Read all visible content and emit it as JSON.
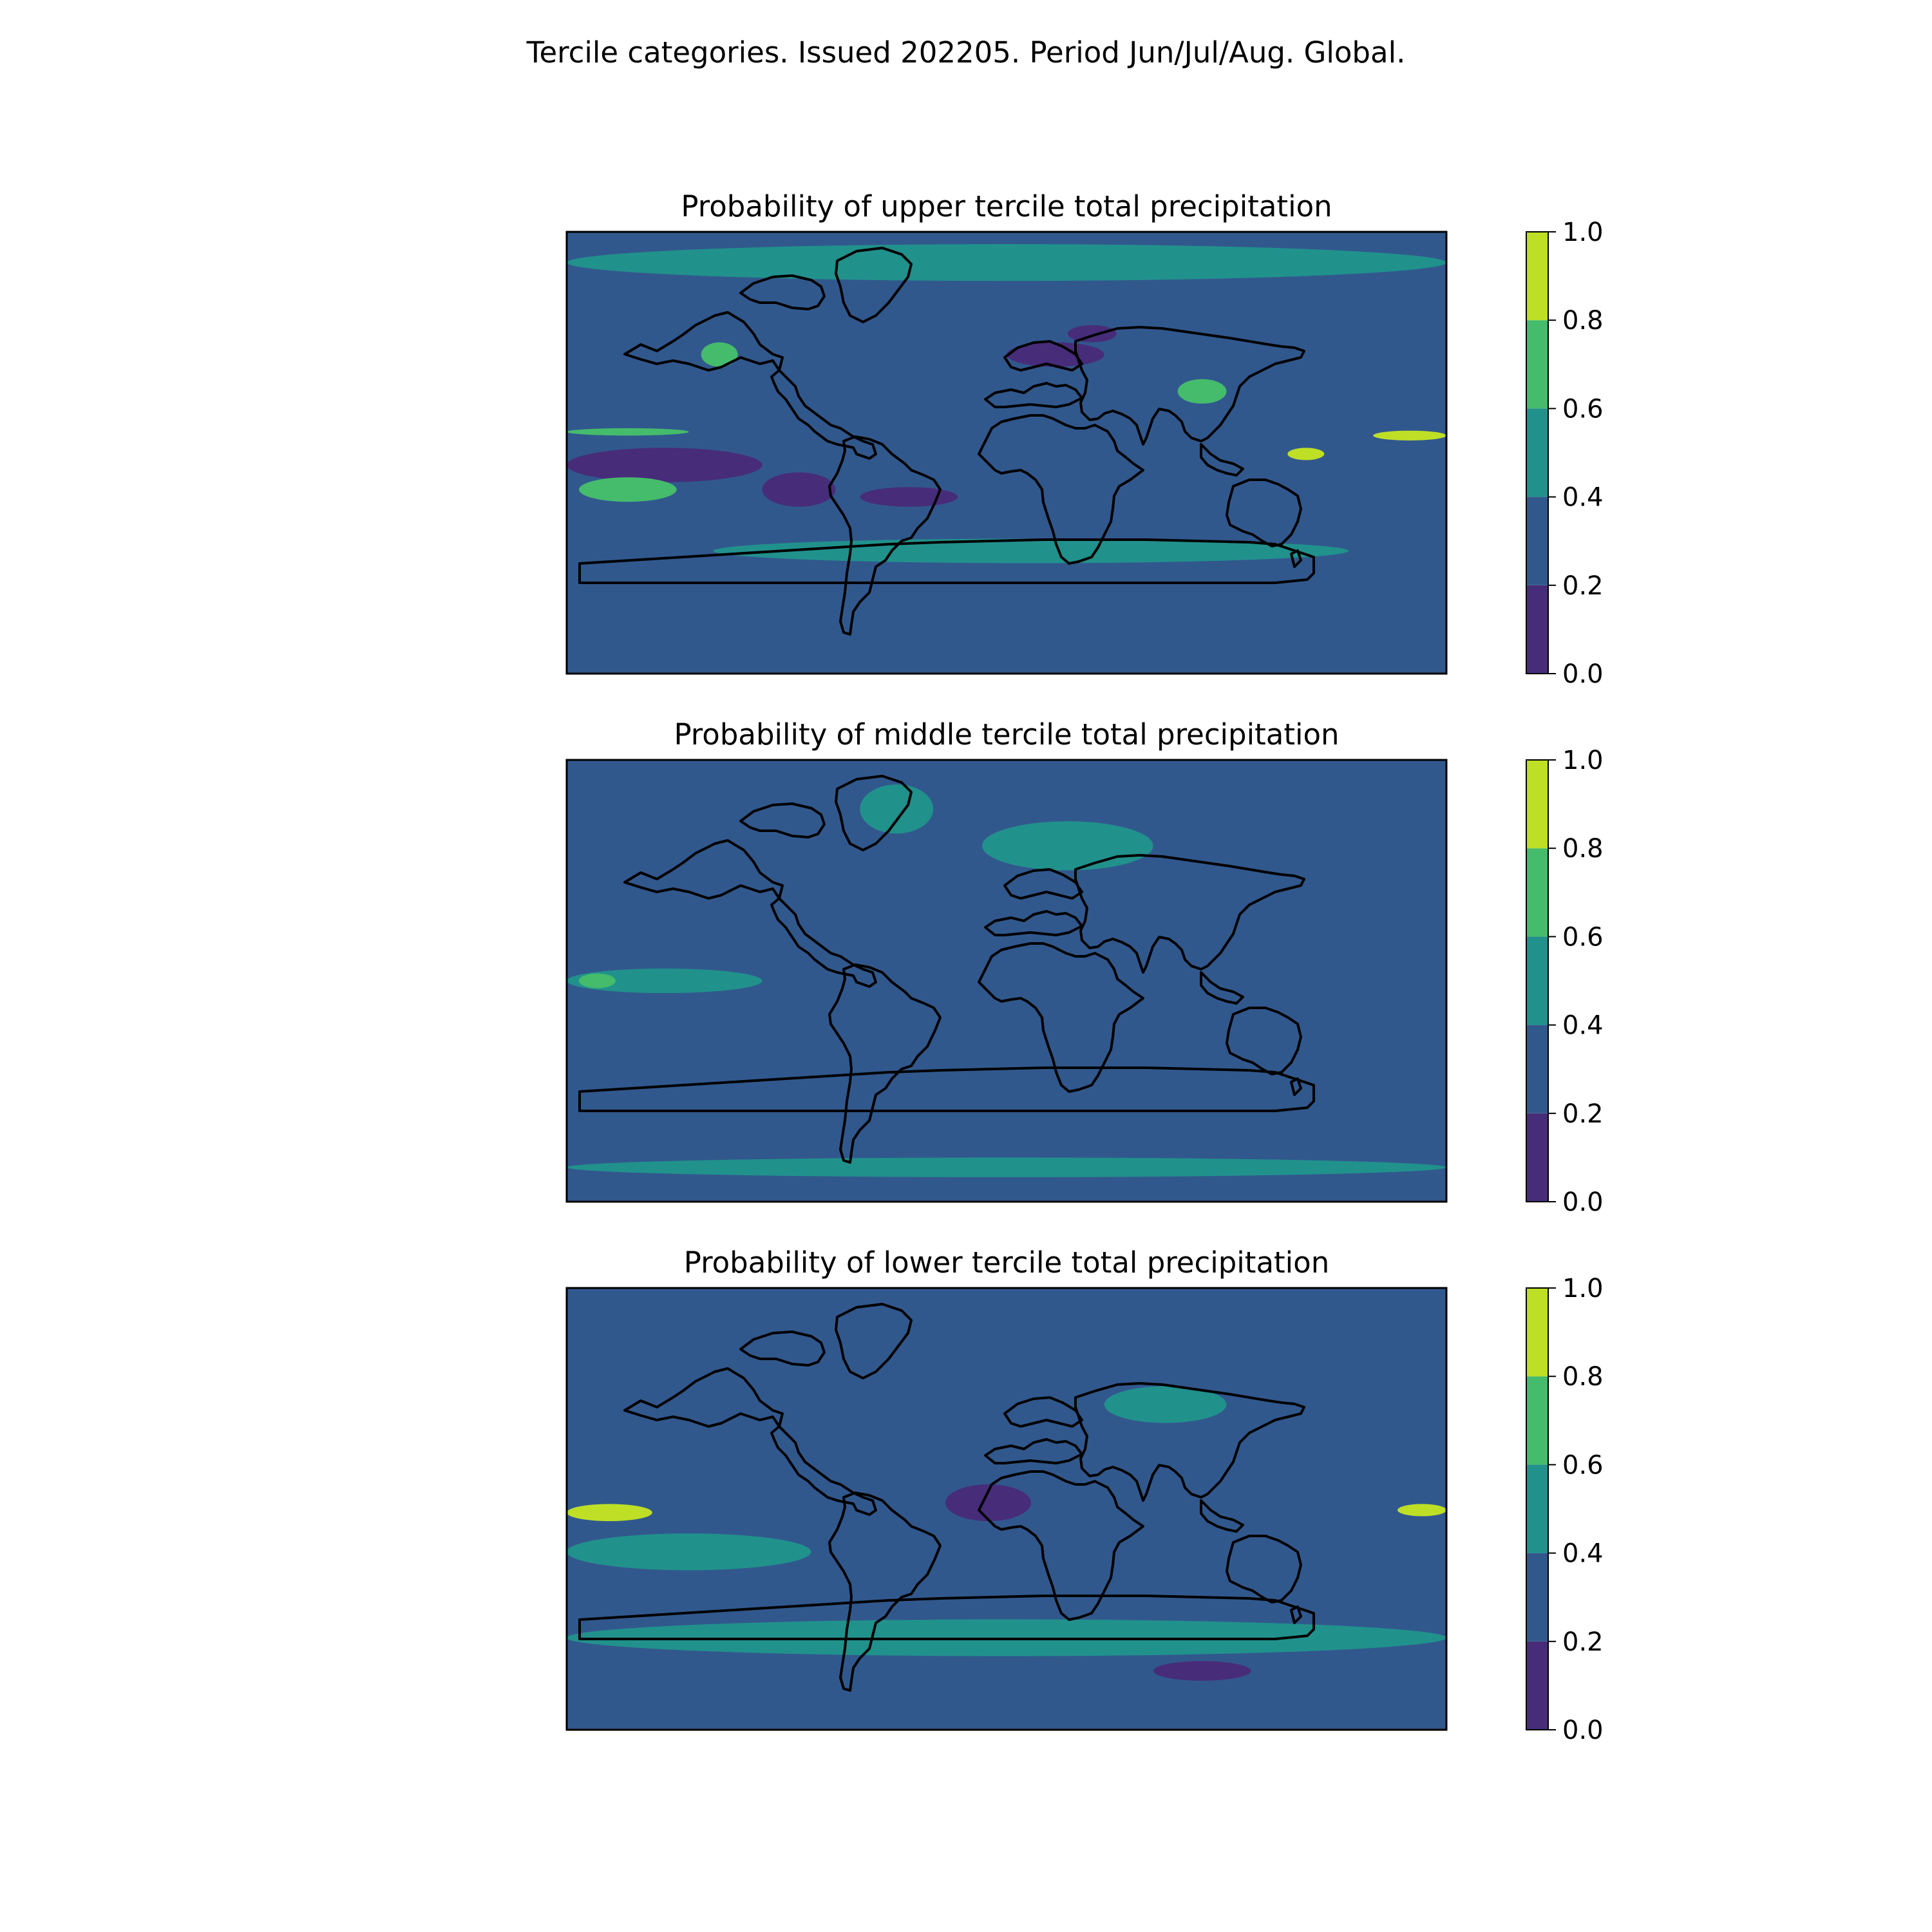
{
  "figure": {
    "suptitle": "Tercile categories. Issued 202205. Period Jun/Jul/Aug. Global."
  },
  "colormap": {
    "name": "viridis",
    "bins": [
      0.0,
      0.2,
      0.4,
      0.6,
      0.8,
      1.0
    ],
    "colors": [
      "#472c7a",
      "#31588d",
      "#21918c",
      "#45bb6c",
      "#bedf26"
    ],
    "tick_labels": [
      "0.0",
      "0.2",
      "0.4",
      "0.6",
      "0.8",
      "1.0"
    ]
  },
  "panels": [
    {
      "id": "upper",
      "title": "Probability of upper tercile total precipitation",
      "background_bin": 1,
      "regions": [
        {
          "desc": "equatorial east Pacific dry band",
          "bin": 0,
          "lon": [
            -180,
            -100
          ],
          "lat": [
            -12,
            2
          ]
        },
        {
          "desc": "Peru / Chile coast dry",
          "bin": 0,
          "lon": [
            -100,
            -70
          ],
          "lat": [
            -22,
            -8
          ]
        },
        {
          "desc": "South Atlantic dry band",
          "bin": 0,
          "lon": [
            -60,
            -20
          ],
          "lat": [
            -22,
            -14
          ]
        },
        {
          "desc": "Mediterranean / Middle East dry",
          "bin": 0,
          "lon": [
            0,
            40
          ],
          "lat": [
            35,
            45
          ]
        },
        {
          "desc": "Black Sea dry",
          "bin": 0,
          "lon": [
            25,
            45
          ],
          "lat": [
            45,
            52
          ]
        },
        {
          "desc": "south Pacific wet band",
          "bin": 3,
          "lon": [
            -175,
            -135
          ],
          "lat": [
            -20,
            -10
          ]
        },
        {
          "desc": "Pacific tongue wet",
          "bin": 3,
          "lon": [
            -180,
            -130
          ],
          "lat": [
            7,
            10
          ]
        },
        {
          "desc": "west Pacific maximum",
          "bin": 4,
          "lon": [
            150,
            180
          ],
          "lat": [
            5,
            9
          ]
        },
        {
          "desc": "Maritime continent maximum",
          "bin": 4,
          "lon": [
            115,
            130
          ],
          "lat": [
            -3,
            2
          ]
        },
        {
          "desc": "western North America wet",
          "bin": 3,
          "lon": [
            -125,
            -110
          ],
          "lat": [
            35,
            45
          ]
        },
        {
          "desc": "India wet",
          "bin": 3,
          "lon": [
            70,
            90
          ],
          "lat": [
            20,
            30
          ]
        },
        {
          "desc": "Southern Ocean wet band",
          "bin": 2,
          "lon": [
            -120,
            140
          ],
          "lat": [
            -45,
            -35
          ]
        },
        {
          "desc": "Arctic mixed",
          "bin": 2,
          "lon": [
            -180,
            180
          ],
          "lat": [
            70,
            85
          ]
        }
      ]
    },
    {
      "id": "middle",
      "title": "Probability of middle tercile total precipitation",
      "background_bin": 1,
      "regions": [
        {
          "desc": "tropical Pacific streaks",
          "bin": 2,
          "lon": [
            -180,
            -100
          ],
          "lat": [
            -5,
            5
          ]
        },
        {
          "desc": "central Pacific wet patch",
          "bin": 3,
          "lon": [
            -175,
            -160
          ],
          "lat": [
            -3,
            3
          ]
        },
        {
          "desc": "Greenland",
          "bin": 2,
          "lon": [
            -60,
            -30
          ],
          "lat": [
            60,
            80
          ]
        },
        {
          "desc": "Antarctic coast strip",
          "bin": 2,
          "lon": [
            -180,
            180
          ],
          "lat": [
            -80,
            -72
          ]
        },
        {
          "desc": "Europe speckle",
          "bin": 2,
          "lon": [
            -10,
            60
          ],
          "lat": [
            45,
            65
          ]
        }
      ]
    },
    {
      "id": "lower",
      "title": "Probability of lower tercile total precipitation",
      "background_bin": 1,
      "regions": [
        {
          "desc": "equatorial east Pacific maximum",
          "bin": 4,
          "lon": [
            -180,
            -145
          ],
          "lat": [
            -5,
            2
          ]
        },
        {
          "desc": "west Pacific maximum",
          "bin": 4,
          "lon": [
            160,
            180
          ],
          "lat": [
            -3,
            2
          ]
        },
        {
          "desc": "Gulf of Guinea dry",
          "bin": 0,
          "lon": [
            -25,
            10
          ],
          "lat": [
            -5,
            10
          ]
        },
        {
          "desc": "South Atlantic dry band",
          "bin": 0,
          "lon": [
            -60,
            -10
          ],
          "lat": [
            -50,
            -45
          ]
        },
        {
          "desc": "Southern Indian Ocean dry",
          "bin": 0,
          "lon": [
            60,
            100
          ],
          "lat": [
            -70,
            -62
          ]
        },
        {
          "desc": "central Asia wet",
          "bin": 2,
          "lon": [
            40,
            90
          ],
          "lat": [
            35,
            50
          ]
        },
        {
          "desc": "subtropical Pacific wet",
          "bin": 2,
          "lon": [
            -180,
            -80
          ],
          "lat": [
            -25,
            -10
          ]
        },
        {
          "desc": "Southern Ocean",
          "bin": 2,
          "lon": [
            -180,
            180
          ],
          "lat": [
            -60,
            -45
          ]
        }
      ]
    }
  ]
}
